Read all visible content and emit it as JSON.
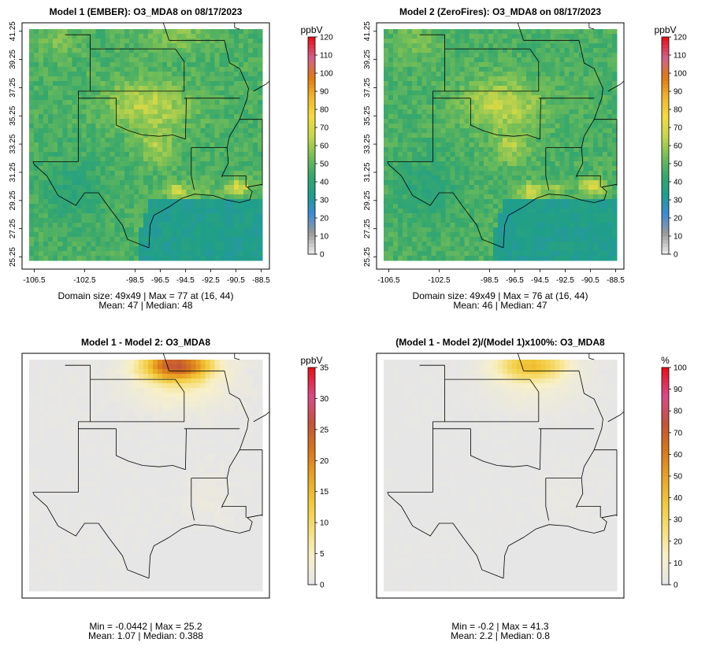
{
  "colors": {
    "frame": "#000000",
    "land_neutral": "#e6e6e6",
    "water_blue": "#4aa8e6",
    "map_scale": [
      "#e6e6e6",
      "#9a9a9a",
      "#3c8ad8",
      "#1f9e8a",
      "#39a86b",
      "#78bf56",
      "#c8d64a",
      "#f4dc3c",
      "#f0b52d",
      "#e07a10",
      "#d1628c",
      "#e7141e"
    ],
    "diff_scale": [
      "#e6e6e6",
      "#f8f0c9",
      "#f6df7a",
      "#f2c93a",
      "#e9a325",
      "#d6761b",
      "#c2543b",
      "#d94a8a",
      "#e9111d"
    ]
  },
  "panels": [
    {
      "id": "model1",
      "title": "Model 1 (EMBER): O3_MDA8 on 08/17/2023",
      "unit": "ppbV",
      "type": "abs",
      "colorbar_ticks": [
        "0",
        "10",
        "20",
        "30",
        "40",
        "50",
        "60",
        "70",
        "80",
        "90",
        "100",
        "110",
        "120"
      ],
      "colorbar_range": [
        0,
        120
      ],
      "show_axes": true,
      "stat_line1": "Domain size: 49x49 | Max = 77 at (16, 44)",
      "stat_line2": "Mean: 47 |  Median: 48",
      "max_value": 77,
      "mean": 47,
      "median": 48
    },
    {
      "id": "model2",
      "title": "Model 2 (ZeroFires): O3_MDA8 on 08/17/2023",
      "unit": "ppbV",
      "type": "abs",
      "colorbar_ticks": [
        "0",
        "10",
        "20",
        "30",
        "40",
        "50",
        "60",
        "70",
        "80",
        "90",
        "100",
        "110",
        "120"
      ],
      "colorbar_range": [
        0,
        120
      ],
      "show_axes": true,
      "stat_line1": "Domain size: 49x49 | Max = 76 at (16, 44)",
      "stat_line2": "Mean: 46 |  Median: 47",
      "max_value": 76,
      "mean": 46,
      "median": 47
    },
    {
      "id": "diff",
      "title": "Model 1 - Model 2: O3_MDA8",
      "unit": "ppbV",
      "type": "diff",
      "colorbar_ticks": [
        "0",
        "5",
        "10",
        "15",
        "20",
        "25",
        "30",
        "35"
      ],
      "colorbar_range": [
        0,
        35
      ],
      "show_axes": false,
      "stat_line1": "Min = -0.0442 | Max = 25.2",
      "stat_line2": "Mean: 1.07 |  Median: 0.388",
      "max_value": 25.2,
      "mean": 1.07,
      "median": 0.388
    },
    {
      "id": "pct",
      "title": "(Model 1 - Model 2)/(Model 1)x100%: O3_MDA8",
      "unit": "%",
      "type": "pct",
      "colorbar_ticks": [
        "0",
        "10",
        "20",
        "30",
        "40",
        "50",
        "60",
        "70",
        "80",
        "90",
        "100"
      ],
      "colorbar_range": [
        0,
        100
      ],
      "show_axes": false,
      "stat_line1": "Min = -0.2 | Max = 41.3",
      "stat_line2": "Mean: 2.2 |  Median: 0.8",
      "max_value": 41.3,
      "mean": 2.2,
      "median": 0.8
    }
  ],
  "axes": {
    "lat_ticks": [
      "25.25",
      "27.25",
      "29.25",
      "31.25",
      "33.25",
      "35.25",
      "37.25",
      "39.25",
      "41.25"
    ],
    "lon_ticks": [
      "-106.5",
      "-102.5",
      "-98.5",
      "-96.5",
      "-94.5",
      "-92.5",
      "-90.5",
      "-88.5"
    ],
    "lon_values": [
      -106.5,
      -102.5,
      -98.5,
      -96.5,
      -94.5,
      -92.5,
      -90.5,
      -88.5
    ],
    "lat_values": [
      25.25,
      27.25,
      29.25,
      31.25,
      33.25,
      35.25,
      37.25,
      39.25,
      41.25
    ]
  }
}
